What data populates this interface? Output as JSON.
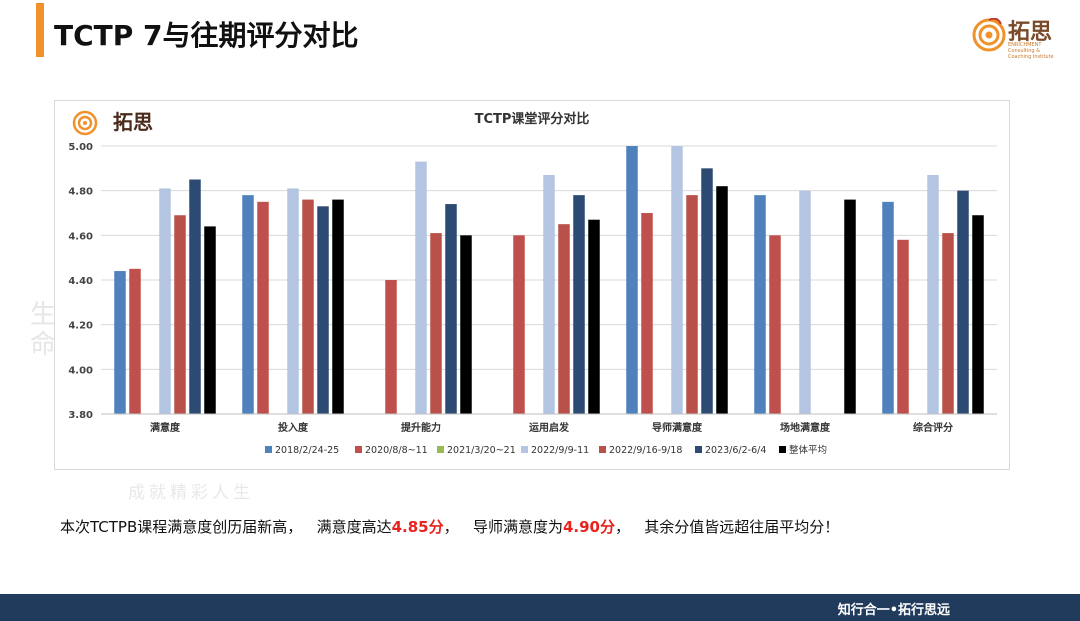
{
  "header": {
    "title": "TCTP 7与往期评分对比",
    "logo": {
      "name": "拓思",
      "subtitle": "ENRICHMENT",
      "tagline": "Consulting & Coaching Institute"
    }
  },
  "watermark": {
    "char_column": "生\n命",
    "slogan": "成就精彩人生",
    "small": "生命"
  },
  "summary": {
    "part1": "本次TCTPB课程满意度创历届新高，",
    "part2": "满意度高达",
    "value1": "4.85分",
    "part3": "，",
    "part4": "导师满意度为",
    "value2": "4.90分",
    "part5": "，",
    "part6": "其余分值皆远超往届平均分！"
  },
  "footer": {
    "motto": "知行合一•拓行思远"
  },
  "chart_data": {
    "type": "bar",
    "title": "TCTP课堂评分对比",
    "categories": [
      "满意度",
      "投入度",
      "提升能力",
      "运用启发",
      "导师满意度",
      "场地满意度",
      "综合评分"
    ],
    "ylim": [
      3.8,
      5.0
    ],
    "yticks": [
      "3.80",
      "4.00",
      "4.20",
      "4.40",
      "4.60",
      "4.80",
      "5.00"
    ],
    "grid": true,
    "legend_position": "bottom",
    "series": [
      {
        "name": "2018/2/24-25",
        "color": "#4f81bd",
        "values": [
          4.44,
          4.78,
          null,
          null,
          5.0,
          4.78,
          4.75
        ]
      },
      {
        "name": "2020/8/8~11",
        "color": "#c0504d",
        "values": [
          4.45,
          4.75,
          4.4,
          4.6,
          4.7,
          4.6,
          4.58
        ]
      },
      {
        "name": "2021/3/20~21",
        "color": "#98b954",
        "values": [
          null,
          null,
          null,
          null,
          null,
          null,
          null
        ]
      },
      {
        "name": "2022/9/9-11",
        "color": "#b3c5e0",
        "values": [
          4.81,
          4.81,
          4.93,
          4.87,
          5.0,
          4.8,
          4.87
        ]
      },
      {
        "name": "2022/9/16-9/18",
        "color": "#b9514a",
        "values": [
          4.69,
          4.76,
          4.61,
          4.65,
          4.78,
          null,
          4.61
        ]
      },
      {
        "name": "2023/6/2-6/4",
        "color": "#2d4b72",
        "values": [
          4.85,
          4.73,
          4.74,
          4.78,
          4.9,
          null,
          4.8
        ]
      },
      {
        "name": "整体平均",
        "color": "#000000",
        "values": [
          4.64,
          4.76,
          4.6,
          4.67,
          4.82,
          4.76,
          4.69
        ]
      }
    ]
  }
}
